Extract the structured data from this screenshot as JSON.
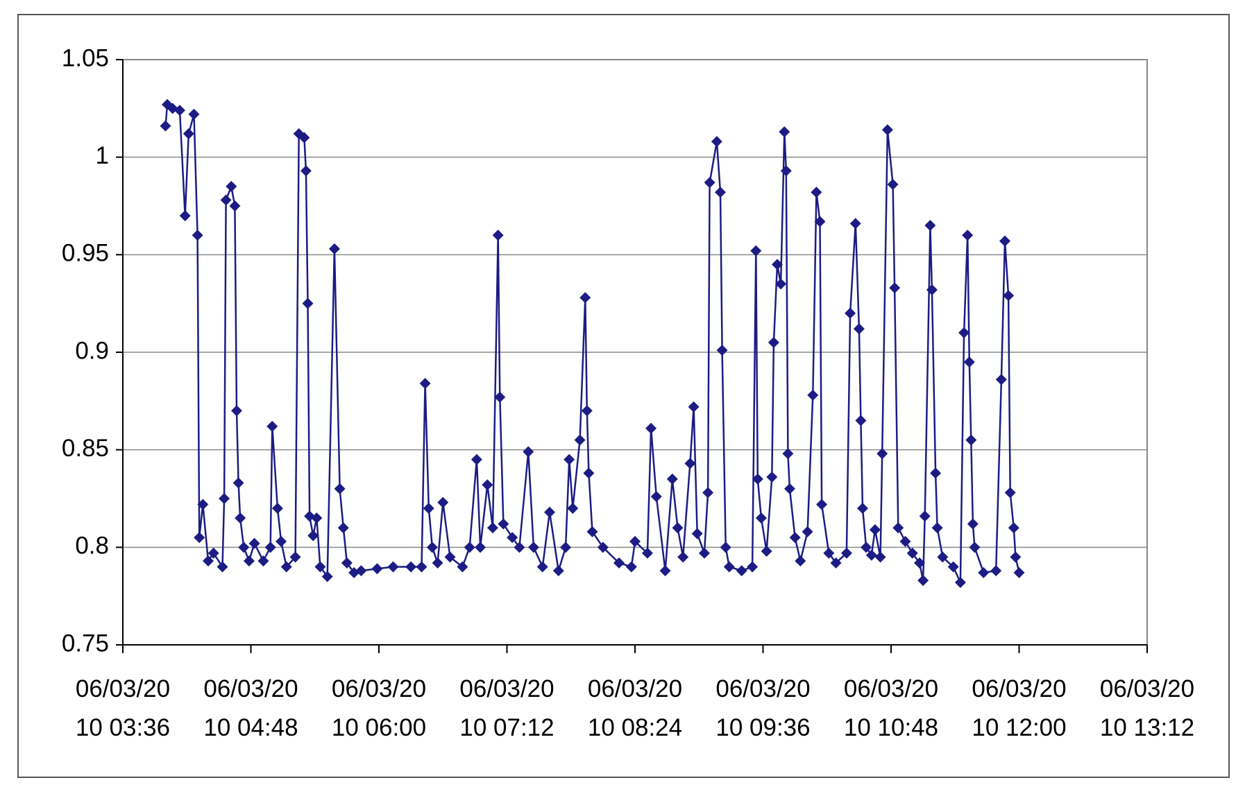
{
  "chart_data": {
    "type": "line",
    "color": "#1c1c84",
    "grid": true,
    "x": [
      "06/03/2010 04:00",
      "06/03/2010 04:01",
      "06/03/2010 04:04",
      "06/03/2010 04:08",
      "06/03/2010 04:11",
      "06/03/2010 04:13",
      "06/03/2010 04:16",
      "06/03/2010 04:18",
      "06/03/2010 04:19",
      "06/03/2010 04:21",
      "06/03/2010 04:24",
      "06/03/2010 04:27",
      "06/03/2010 04:32",
      "06/03/2010 04:33",
      "06/03/2010 04:34",
      "06/03/2010 04:37",
      "06/03/2010 04:39",
      "06/03/2010 04:40",
      "06/03/2010 04:41",
      "06/03/2010 04:42",
      "06/03/2010 04:44",
      "06/03/2010 04:47",
      "06/03/2010 04:50",
      "06/03/2010 04:55",
      "06/03/2010 04:59",
      "06/03/2010 05:00",
      "06/03/2010 05:03",
      "06/03/2010 05:05",
      "06/03/2010 05:08",
      "06/03/2010 05:13",
      "06/03/2010 05:15",
      "06/03/2010 05:18",
      "06/03/2010 05:19",
      "06/03/2010 05:20",
      "06/03/2010 05:21",
      "06/03/2010 05:23",
      "06/03/2010 05:25",
      "06/03/2010 05:27",
      "06/03/2010 05:31",
      "06/03/2010 05:35",
      "06/03/2010 05:38",
      "06/03/2010 05:40",
      "06/03/2010 05:42",
      "06/03/2010 05:46",
      "06/03/2010 05:50",
      "06/03/2010 05:59",
      "06/03/2010 06:08",
      "06/03/2010 06:18",
      "06/03/2010 06:24",
      "06/03/2010 06:26",
      "06/03/2010 06:28",
      "06/03/2010 06:30",
      "06/03/2010 06:33",
      "06/03/2010 06:36",
      "06/03/2010 06:40",
      "06/03/2010 06:47",
      "06/03/2010 06:51",
      "06/03/2010 06:55",
      "06/03/2010 06:57",
      "06/03/2010 07:01",
      "06/03/2010 07:04",
      "06/03/2010 07:07",
      "06/03/2010 07:08",
      "06/03/2010 07:10",
      "06/03/2010 07:15",
      "06/03/2010 07:19",
      "06/03/2010 07:24",
      "06/03/2010 07:27",
      "06/03/2010 07:32",
      "06/03/2010 07:36",
      "06/03/2010 07:41",
      "06/03/2010 07:45",
      "06/03/2010 07:47",
      "06/03/2010 07:49",
      "06/03/2010 07:53",
      "06/03/2010 07:56",
      "06/03/2010 07:57",
      "06/03/2010 07:58",
      "06/03/2010 08:00",
      "06/03/2010 08:06",
      "06/03/2010 08:15",
      "06/03/2010 08:22",
      "06/03/2010 08:24",
      "06/03/2010 08:31",
      "06/03/2010 08:33",
      "06/03/2010 08:36",
      "06/03/2010 08:41",
      "06/03/2010 08:45",
      "06/03/2010 08:48",
      "06/03/2010 08:51",
      "06/03/2010 08:55",
      "06/03/2010 08:57",
      "06/03/2010 08:59",
      "06/03/2010 09:03",
      "06/03/2010 09:05",
      "06/03/2010 09:06",
      "06/03/2010 09:10",
      "06/03/2010 09:12",
      "06/03/2010 09:13",
      "06/03/2010 09:15",
      "06/03/2010 09:17",
      "06/03/2010 09:24",
      "06/03/2010 09:30",
      "06/03/2010 09:32",
      "06/03/2010 09:33",
      "06/03/2010 09:35",
      "06/03/2010 09:38",
      "06/03/2010 09:41",
      "06/03/2010 09:42",
      "06/03/2010 09:44",
      "06/03/2010 09:46",
      "06/03/2010 09:48",
      "06/03/2010 09:49",
      "06/03/2010 09:50",
      "06/03/2010 09:51",
      "06/03/2010 09:54",
      "06/03/2010 09:57",
      "06/03/2010 10:01",
      "06/03/2010 10:04",
      "06/03/2010 10:06",
      "06/03/2010 10:08",
      "06/03/2010 10:09",
      "06/03/2010 10:13",
      "06/03/2010 10:17",
      "06/03/2010 10:23",
      "06/03/2010 10:25",
      "06/03/2010 10:28",
      "06/03/2010 10:30",
      "06/03/2010 10:31",
      "06/03/2010 10:32",
      "06/03/2010 10:34",
      "06/03/2010 10:37",
      "06/03/2010 10:39",
      "06/03/2010 10:42",
      "06/03/2010 10:43",
      "06/03/2010 10:46",
      "06/03/2010 10:49",
      "06/03/2010 10:50",
      "06/03/2010 10:52",
      "06/03/2010 10:56",
      "06/03/2010 11:00",
      "06/03/2010 11:04",
      "06/03/2010 11:06",
      "06/03/2010 11:07",
      "06/03/2010 11:10",
      "06/03/2010 11:11",
      "06/03/2010 11:13",
      "06/03/2010 11:14",
      "06/03/2010 11:17",
      "06/03/2010 11:23",
      "06/03/2010 11:27",
      "06/03/2010 11:29",
      "06/03/2010 11:31",
      "06/03/2010 11:32",
      "06/03/2010 11:33",
      "06/03/2010 11:34",
      "06/03/2010 11:35",
      "06/03/2010 11:40",
      "06/03/2010 11:47",
      "06/03/2010 11:50",
      "06/03/2010 11:52",
      "06/03/2010 11:54",
      "06/03/2010 11:55",
      "06/03/2010 11:57",
      "06/03/2010 11:58",
      "06/03/2010 12:00"
    ],
    "values": [
      1.016,
      1.027,
      1.025,
      1.024,
      0.97,
      1.012,
      1.022,
      0.96,
      0.805,
      0.822,
      0.793,
      0.797,
      0.79,
      0.825,
      0.978,
      0.985,
      0.975,
      0.87,
      0.833,
      0.815,
      0.8,
      0.793,
      0.802,
      0.793,
      0.8,
      0.862,
      0.82,
      0.803,
      0.79,
      0.795,
      1.012,
      1.01,
      0.993,
      0.925,
      0.816,
      0.806,
      0.815,
      0.79,
      0.785,
      0.953,
      0.83,
      0.81,
      0.792,
      0.787,
      0.788,
      0.789,
      0.79,
      0.79,
      0.79,
      0.884,
      0.82,
      0.8,
      0.792,
      0.823,
      0.795,
      0.79,
      0.8,
      0.845,
      0.8,
      0.832,
      0.81,
      0.96,
      0.877,
      0.812,
      0.805,
      0.8,
      0.849,
      0.8,
      0.79,
      0.818,
      0.788,
      0.8,
      0.845,
      0.82,
      0.855,
      0.928,
      0.87,
      0.838,
      0.808,
      0.8,
      0.792,
      0.79,
      0.803,
      0.797,
      0.861,
      0.826,
      0.788,
      0.835,
      0.81,
      0.795,
      0.843,
      0.872,
      0.807,
      0.797,
      0.828,
      0.987,
      1.008,
      0.982,
      0.901,
      0.8,
      0.79,
      0.788,
      0.79,
      0.952,
      0.835,
      0.815,
      0.798,
      0.836,
      0.905,
      0.945,
      0.935,
      1.013,
      0.993,
      0.848,
      0.83,
      0.805,
      0.793,
      0.808,
      0.878,
      0.982,
      0.967,
      0.822,
      0.797,
      0.792,
      0.797,
      0.92,
      0.966,
      0.912,
      0.865,
      0.82,
      0.8,
      0.796,
      0.809,
      0.795,
      0.848,
      1.014,
      0.986,
      0.933,
      0.81,
      0.803,
      0.797,
      0.792,
      0.783,
      0.816,
      0.965,
      0.932,
      0.838,
      0.81,
      0.795,
      0.79,
      0.782,
      0.91,
      0.96,
      0.895,
      0.855,
      0.812,
      0.8,
      0.787,
      0.788,
      0.886,
      0.957,
      0.929,
      0.828,
      0.81,
      0.795,
      0.787
    ],
    "xlim": [
      "06/03/2010 03:36",
      "06/03/2010 13:12"
    ],
    "xticks": [
      "06/03/2010 03:36",
      "06/03/2010 04:48",
      "06/03/2010 06:00",
      "06/03/2010 07:12",
      "06/03/2010 08:24",
      "06/03/2010 09:36",
      "06/03/2010 10:48",
      "06/03/2010 12:00",
      "06/03/2010 13:12"
    ],
    "ylim": [
      0.75,
      1.05
    ],
    "yticks": [
      0.75,
      0.8,
      0.85,
      0.9,
      0.95,
      1,
      1.05
    ]
  }
}
